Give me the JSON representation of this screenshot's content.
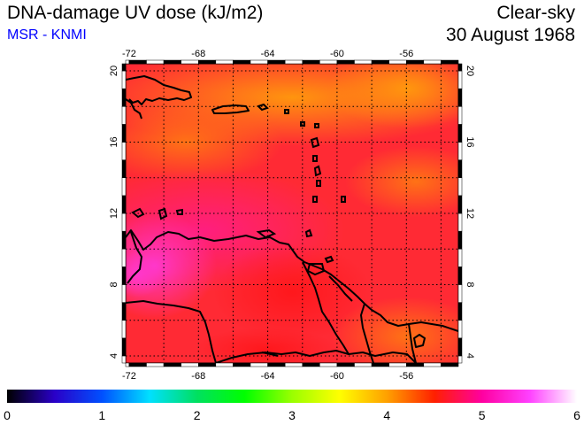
{
  "header": {
    "title": "DNA-damage UV dose (kJ/m2)",
    "credit": "MSR - KNMI",
    "sky_condition": "Clear-sky",
    "date": "30 August 1968"
  },
  "map": {
    "region": "Caribbean Sea and Lesser Antilles",
    "lon_range": [
      -72.2,
      -53.0
    ],
    "lat_range": [
      3.6,
      20.4
    ],
    "lon_ticks": [
      -72,
      -68,
      -64,
      -60,
      -56
    ],
    "lon_tick_labels": [
      "-72",
      "-68",
      "-64",
      "-60",
      "-56"
    ],
    "lat_ticks": [
      4,
      8,
      12,
      16,
      20
    ],
    "lat_tick_labels": [
      "4",
      "8",
      "12",
      "16",
      "20"
    ],
    "grid": true,
    "grid_style": "dotted",
    "dominant_colors": {
      "north_band": "#ff8c0a",
      "central_band": "#ff1a3c",
      "west_coast": "#ff2dc8",
      "south_east": "#ff7a10"
    }
  },
  "colorbar": {
    "min": 0,
    "max": 6,
    "tick_labels": [
      "0",
      "1",
      "2",
      "3",
      "4",
      "5",
      "6"
    ],
    "stops": [
      "#000000",
      "#2a00c8",
      "#0050ff",
      "#00e0ff",
      "#00e060",
      "#00ff00",
      "#9aff00",
      "#ffff00",
      "#ffa000",
      "#ff2000",
      "#ff00a0",
      "#ff40ff",
      "#ffffff"
    ]
  }
}
